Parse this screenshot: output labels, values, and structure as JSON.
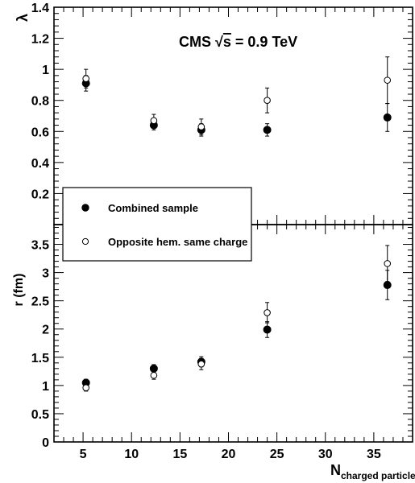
{
  "chart_data": [
    {
      "type": "scatter",
      "panel": "top",
      "ylabel": "λ",
      "ylim": [
        0,
        1.4
      ],
      "yticks": [
        "0.2",
        "0.4",
        "0.6",
        "0.8",
        "1",
        "1.2",
        "1.4"
      ],
      "xlim": [
        2,
        39
      ],
      "annotation": {
        "prefix": "CMS ",
        "sqrt": "√",
        "s": "s",
        "suffix": " = 0.9  TeV"
      },
      "series": [
        {
          "name": "Combined sample",
          "marker": "filled",
          "color": "#000000",
          "points": [
            {
              "x": 5.3,
              "y": 0.91,
              "err": 0.05
            },
            {
              "x": 12.3,
              "y": 0.64,
              "err": 0.03
            },
            {
              "x": 17.2,
              "y": 0.61,
              "err": 0.04
            },
            {
              "x": 24.0,
              "y": 0.61,
              "err": 0.04
            },
            {
              "x": 36.4,
              "y": 0.69,
              "err": 0.09
            }
          ]
        },
        {
          "name": "Opposite hem. same charge",
          "marker": "open",
          "color": "#000000",
          "points": [
            {
              "x": 5.3,
              "y": 0.94,
              "err": 0.06
            },
            {
              "x": 12.3,
              "y": 0.67,
              "err": 0.04
            },
            {
              "x": 17.2,
              "y": 0.63,
              "err": 0.05
            },
            {
              "x": 24.0,
              "y": 0.8,
              "err": 0.08
            },
            {
              "x": 36.4,
              "y": 0.93,
              "err": 0.15
            }
          ]
        }
      ]
    },
    {
      "type": "scatter",
      "panel": "bottom",
      "ylabel": "r (fm)",
      "ylim": [
        0,
        3.85
      ],
      "yticks": [
        "0",
        "0.5",
        "1",
        "1.5",
        "2",
        "2.5",
        "3",
        "3.5"
      ],
      "xlim": [
        2,
        39
      ],
      "xticks": [
        "5",
        "10",
        "15",
        "20",
        "25",
        "30",
        "35"
      ],
      "xlabel": {
        "main": "N",
        "sub": "charged particles"
      },
      "series": [
        {
          "name": "Combined sample",
          "marker": "filled",
          "color": "#000000",
          "points": [
            {
              "x": 5.3,
              "y": 1.05,
              "err": 0.06
            },
            {
              "x": 12.3,
              "y": 1.3,
              "err": 0.07
            },
            {
              "x": 17.2,
              "y": 1.42,
              "err": 0.09
            },
            {
              "x": 24.0,
              "y": 1.99,
              "err": 0.14
            },
            {
              "x": 36.4,
              "y": 2.78,
              "err": 0.26
            }
          ]
        },
        {
          "name": "Opposite hem. same charge",
          "marker": "open",
          "color": "#000000",
          "points": [
            {
              "x": 5.3,
              "y": 0.96,
              "err": 0.06
            },
            {
              "x": 12.3,
              "y": 1.18,
              "err": 0.07
            },
            {
              "x": 17.2,
              "y": 1.38,
              "err": 0.1
            },
            {
              "x": 24.0,
              "y": 2.29,
              "err": 0.18
            },
            {
              "x": 36.4,
              "y": 3.16,
              "err": 0.32
            }
          ]
        }
      ]
    }
  ],
  "legend": {
    "placement": "left-center",
    "entries": [
      {
        "label": "Combined sample",
        "marker": "filled"
      },
      {
        "label": "Opposite hem. same charge",
        "marker": "open"
      }
    ]
  }
}
